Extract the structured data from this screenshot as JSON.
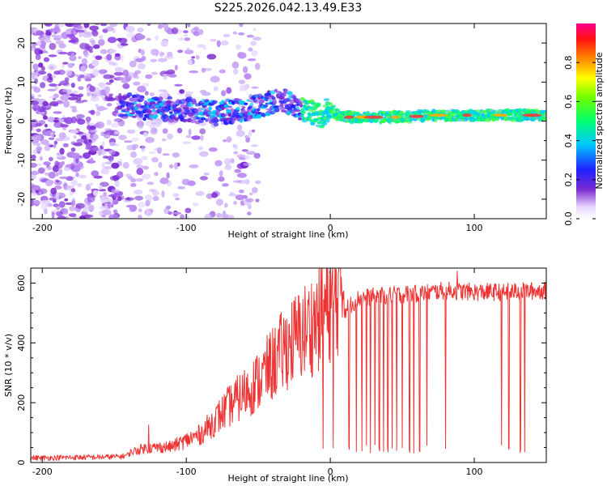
{
  "title": "S225.2026.042.13.49.E33",
  "chart_data": [
    {
      "type": "heatmap",
      "name": "spectrogram",
      "xlabel": "Height of straight line (km)",
      "ylabel": "Frequency (Hz)",
      "xlim": [
        -208,
        150
      ],
      "ylim": [
        -25,
        25
      ],
      "xticks": [
        -200,
        -100,
        0,
        100
      ],
      "yticks": [
        -20,
        -10,
        0,
        10,
        20
      ],
      "trend_line": {
        "x": [
          -142,
          -120,
          -100,
          -80,
          -60,
          -45,
          -35,
          -25,
          -18,
          -12,
          -6,
          0,
          5,
          15,
          40,
          80,
          150
        ],
        "y": [
          4,
          3,
          3,
          2,
          3,
          4,
          6,
          4,
          3,
          2,
          1.5,
          3.5,
          1.5,
          1,
          1,
          1.5,
          1.5
        ]
      },
      "colorbar": {
        "label": "Normalized spectral amplitude",
        "ticks": [
          0.0,
          0.2,
          0.4,
          0.6,
          0.8
        ],
        "range": [
          0,
          1
        ]
      }
    },
    {
      "type": "line",
      "name": "snr",
      "xlabel": "Height of straight line (km)",
      "ylabel": "SNR (10 * v/v)",
      "xlim": [
        -208,
        150
      ],
      "ylim": [
        0,
        650
      ],
      "xticks": [
        -200,
        -100,
        0,
        100
      ],
      "yticks": [
        0,
        200,
        400,
        600
      ],
      "color": "#ee3333",
      "envelope": {
        "x": [
          -208,
          -160,
          -145,
          -130,
          -110,
          -90,
          -70,
          -50,
          -30,
          -10,
          0,
          10,
          20,
          40,
          60,
          80,
          100,
          120,
          150
        ],
        "y": [
          15,
          18,
          20,
          40,
          45,
          80,
          160,
          230,
          330,
          400,
          450,
          510,
          550,
          560,
          565,
          575,
          570,
          570,
          575
        ]
      },
      "dropouts": [
        -5,
        2,
        8,
        13,
        18,
        22,
        25,
        28,
        31,
        34,
        37,
        40,
        43,
        46,
        50,
        55,
        58,
        62,
        67,
        80,
        119,
        124,
        132,
        135
      ],
      "spikes": [
        {
          "x": -126,
          "y": 125
        },
        {
          "x": 8,
          "y": 590
        },
        {
          "x": 88,
          "y": 640
        }
      ]
    }
  ]
}
